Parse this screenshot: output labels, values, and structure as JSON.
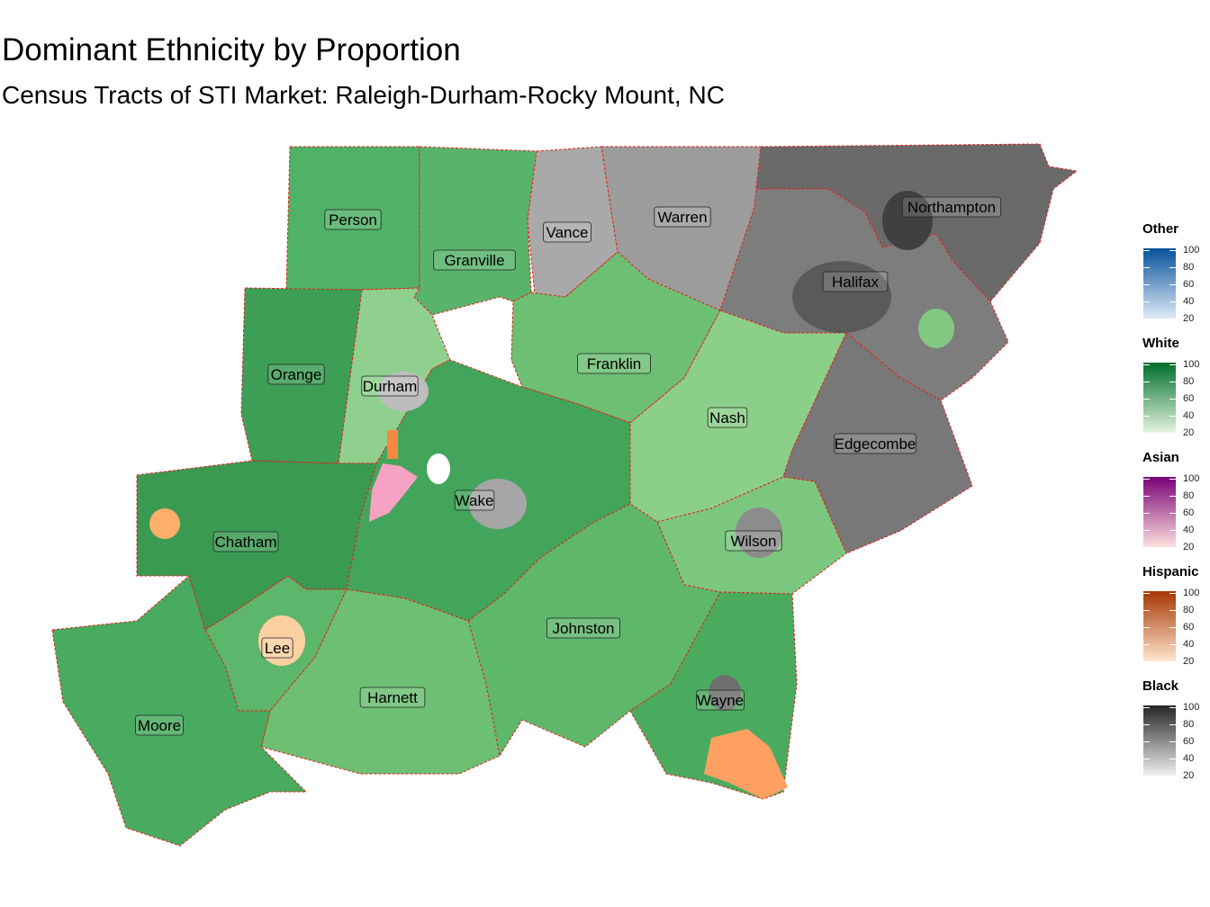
{
  "title": "Dominant Ethnicity by Proportion",
  "subtitle": "Census Tracts of STI Market: Raleigh-Durham-Rocky Mount, NC",
  "counties": [
    {
      "name": "Person",
      "fill": "#4fb266"
    },
    {
      "name": "Granville",
      "fill": "#58b46b"
    },
    {
      "name": "Vance",
      "fill": "#a9a9a9"
    },
    {
      "name": "Warren",
      "fill": "#9c9c9c"
    },
    {
      "name": "Northampton",
      "fill": "#6a6a6a"
    },
    {
      "name": "Halifax",
      "fill": "#7d7d7d"
    },
    {
      "name": "Orange",
      "fill": "#3d9e55"
    },
    {
      "name": "Durham",
      "fill": "#8fd08f"
    },
    {
      "name": "Franklin",
      "fill": "#6dbf74"
    },
    {
      "name": "Nash",
      "fill": "#8ccf8a"
    },
    {
      "name": "Edgecombe",
      "fill": "#787878"
    },
    {
      "name": "Wake",
      "fill": "#43a55b"
    },
    {
      "name": "Chatham",
      "fill": "#3a9a52"
    },
    {
      "name": "Wilson",
      "fill": "#7cc77f"
    },
    {
      "name": "Lee",
      "fill": "#5cb66c"
    },
    {
      "name": "Johnston",
      "fill": "#5fb76c"
    },
    {
      "name": "Harnett",
      "fill": "#6cbf73"
    },
    {
      "name": "Moore",
      "fill": "#48ab5f"
    },
    {
      "name": "Wayne",
      "fill": "#4aab5f"
    }
  ],
  "legend": [
    {
      "name": "Other",
      "low": "#deebf7",
      "high": "#08519c",
      "ticks": [
        "100",
        "80",
        "60",
        "40",
        "20"
      ]
    },
    {
      "name": "White",
      "low": "#e5f5e0",
      "high": "#006d2c",
      "ticks": [
        "100",
        "80",
        "60",
        "40",
        "20"
      ]
    },
    {
      "name": "Asian",
      "low": "#fde0dd",
      "high": "#7a0177",
      "ticks": [
        "100",
        "80",
        "60",
        "40",
        "20"
      ]
    },
    {
      "name": "Hispanic",
      "low": "#fee6ce",
      "high": "#a63603",
      "ticks": [
        "100",
        "80",
        "60",
        "40",
        "20"
      ]
    },
    {
      "name": "Black",
      "low": "#f0f0f0",
      "high": "#252525",
      "ticks": [
        "100",
        "80",
        "60",
        "40",
        "20"
      ]
    }
  ]
}
